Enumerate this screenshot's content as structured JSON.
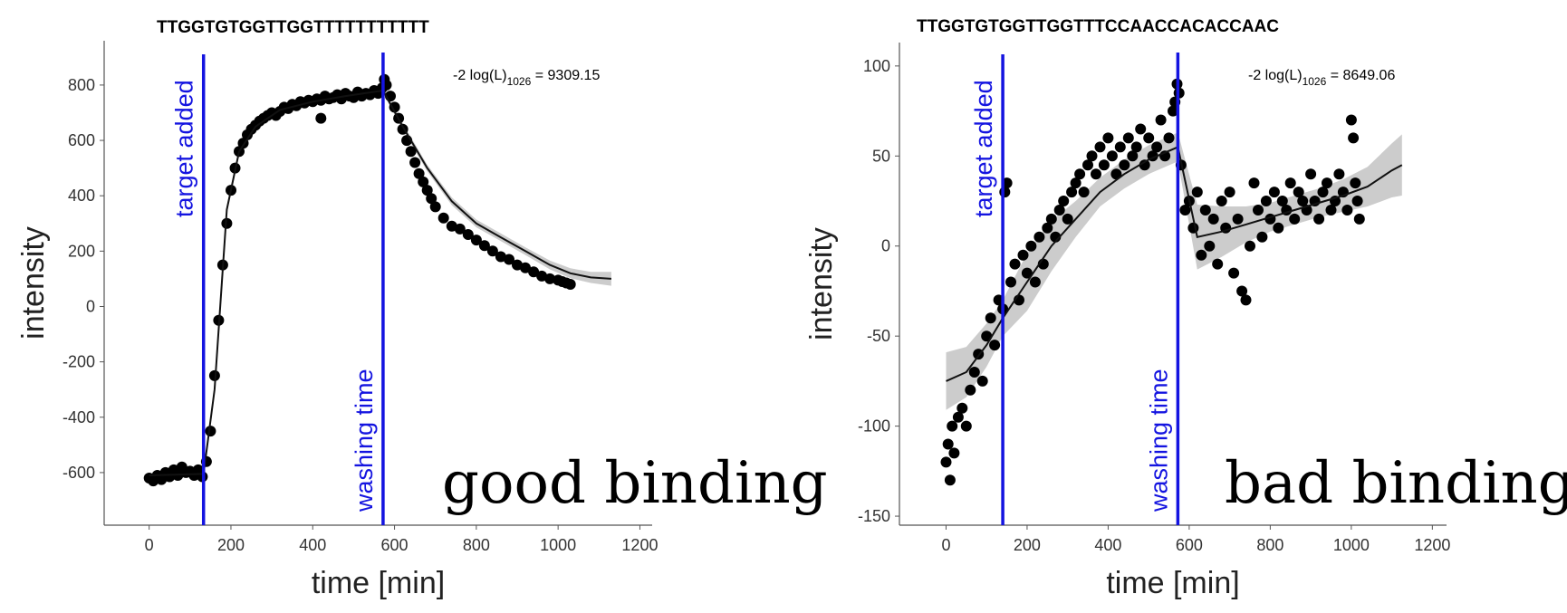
{
  "chart_data": [
    {
      "type": "scatter",
      "title": "TTGGTGTGGTTGGTTTTTTTTTTT",
      "xlabel": "time [min]",
      "ylabel": "intensity",
      "xlim": [
        -110,
        1230
      ],
      "ylim": [
        -790,
        960
      ],
      "xticks": [
        0,
        200,
        400,
        600,
        800,
        1000,
        1200
      ],
      "yticks": [
        -600,
        -400,
        -200,
        0,
        200,
        400,
        600,
        800
      ],
      "xtick_labels": [
        "0",
        "200",
        "400",
        "600",
        "800",
        "1000",
        "1200"
      ],
      "ytick_labels": [
        "-600",
        "-400",
        "-200",
        "0",
        "200",
        "400",
        "600",
        "800"
      ],
      "grid": false,
      "annotation": {
        "prefix": "-2 log(L)",
        "subscript": "1026",
        "suffix": " = 9309.15"
      },
      "caption": "good binding",
      "vlines": [
        {
          "x": 133,
          "label": "target added"
        },
        {
          "x": 572,
          "label": "washing time"
        }
      ],
      "fit": {
        "x": [
          0,
          133,
          160,
          190,
          220,
          260,
          320,
          400,
          480,
          572,
          620,
          680,
          740,
          800,
          860,
          920,
          980,
          1030,
          1080,
          1130
        ],
        "y": [
          -610,
          -605,
          -300,
          350,
          560,
          650,
          710,
          740,
          760,
          780,
          650,
          500,
          380,
          300,
          250,
          200,
          150,
          120,
          105,
          100
        ],
        "band": [
          5,
          5,
          15,
          15,
          10,
          8,
          8,
          8,
          8,
          10,
          12,
          12,
          14,
          14,
          14,
          14,
          16,
          18,
          20,
          25
        ]
      },
      "points": {
        "x": [
          0,
          10,
          20,
          30,
          40,
          50,
          60,
          70,
          80,
          90,
          100,
          110,
          120,
          130,
          140,
          150,
          160,
          170,
          180,
          190,
          200,
          210,
          220,
          230,
          240,
          250,
          260,
          270,
          280,
          290,
          300,
          310,
          320,
          330,
          340,
          350,
          360,
          370,
          380,
          390,
          400,
          410,
          420,
          430,
          440,
          450,
          460,
          470,
          480,
          490,
          500,
          510,
          520,
          530,
          540,
          550,
          560,
          570,
          575,
          580,
          590,
          600,
          610,
          620,
          630,
          640,
          650,
          660,
          670,
          680,
          690,
          700,
          720,
          740,
          760,
          780,
          800,
          820,
          840,
          860,
          880,
          900,
          920,
          940,
          960,
          980,
          1000,
          1010,
          1020,
          1030,
          420
        ],
        "y": [
          -620,
          -630,
          -610,
          -625,
          -600,
          -615,
          -590,
          -610,
          -580,
          -600,
          -595,
          -610,
          -590,
          -615,
          -560,
          -450,
          -250,
          -50,
          150,
          300,
          420,
          500,
          560,
          590,
          620,
          640,
          655,
          670,
          680,
          690,
          700,
          690,
          705,
          720,
          715,
          730,
          725,
          740,
          735,
          745,
          740,
          750,
          745,
          760,
          750,
          755,
          765,
          750,
          770,
          760,
          755,
          775,
          760,
          770,
          765,
          780,
          770,
          790,
          820,
          800,
          760,
          720,
          680,
          640,
          600,
          560,
          520,
          480,
          450,
          420,
          390,
          360,
          320,
          290,
          280,
          260,
          240,
          220,
          200,
          180,
          170,
          150,
          140,
          125,
          110,
          100,
          95,
          90,
          85,
          80,
          680
        ]
      }
    },
    {
      "type": "scatter",
      "title": "TTGGTGTGGTTGGTTTCCAACCACACCAAC",
      "xlabel": "time [min]",
      "ylabel": "intensity",
      "xlim": [
        -115,
        1235
      ],
      "ylim": [
        -155,
        113
      ],
      "xticks": [
        0,
        200,
        400,
        600,
        800,
        1000,
        1200
      ],
      "yticks": [
        -150,
        -100,
        -50,
        0,
        50,
        100
      ],
      "xtick_labels": [
        "0",
        "200",
        "400",
        "600",
        "800",
        "1000",
        "1200"
      ],
      "ytick_labels": [
        "-150",
        "-100",
        "-50",
        "0",
        "50",
        "100"
      ],
      "grid": false,
      "annotation": {
        "prefix": "-2 log(L)",
        "subscript": "1026",
        "suffix": " = 8649.06"
      },
      "caption": "bad binding",
      "vlines": [
        {
          "x": 140,
          "label": "target added"
        },
        {
          "x": 572,
          "label": "washing time"
        }
      ],
      "fit": {
        "x": [
          0,
          50,
          100,
          140,
          200,
          260,
          320,
          380,
          440,
          500,
          572,
          620,
          680,
          740,
          800,
          860,
          920,
          980,
          1040,
          1100,
          1125
        ],
        "y": [
          -75,
          -70,
          -55,
          -40,
          -20,
          0,
          15,
          30,
          40,
          48,
          55,
          5,
          8,
          12,
          16,
          20,
          24,
          28,
          33,
          42,
          45
        ],
        "band": [
          16,
          14,
          12,
          10,
          16,
          14,
          10,
          8,
          8,
          8,
          8,
          18,
          14,
          10,
          8,
          8,
          8,
          9,
          11,
          15,
          17
        ]
      },
      "points": {
        "x": [
          0,
          5,
          10,
          15,
          20,
          30,
          40,
          50,
          60,
          70,
          80,
          90,
          100,
          110,
          120,
          130,
          140,
          145,
          150,
          160,
          170,
          180,
          190,
          200,
          210,
          220,
          230,
          240,
          250,
          260,
          270,
          280,
          290,
          300,
          310,
          320,
          330,
          340,
          350,
          360,
          370,
          380,
          390,
          400,
          410,
          420,
          430,
          440,
          450,
          460,
          470,
          480,
          490,
          500,
          510,
          520,
          530,
          540,
          550,
          560,
          565,
          570,
          575,
          580,
          590,
          600,
          610,
          620,
          630,
          640,
          650,
          660,
          670,
          680,
          690,
          700,
          710,
          720,
          730,
          740,
          750,
          760,
          770,
          780,
          790,
          800,
          810,
          820,
          830,
          840,
          850,
          860,
          870,
          880,
          890,
          900,
          910,
          920,
          930,
          940,
          950,
          960,
          970,
          980,
          990,
          1000,
          1005,
          1010,
          1015,
          1020
        ],
        "y": [
          -120,
          -110,
          -130,
          -100,
          -115,
          -95,
          -90,
          -100,
          -80,
          -70,
          -60,
          -75,
          -50,
          -40,
          -55,
          -30,
          -35,
          30,
          35,
          -20,
          -10,
          -30,
          -5,
          -15,
          0,
          -20,
          5,
          -10,
          10,
          15,
          5,
          20,
          25,
          15,
          30,
          35,
          40,
          30,
          45,
          50,
          40,
          55,
          45,
          60,
          50,
          40,
          55,
          45,
          60,
          50,
          55,
          65,
          45,
          60,
          50,
          55,
          70,
          50,
          60,
          75,
          80,
          90,
          85,
          45,
          20,
          25,
          10,
          30,
          -5,
          20,
          0,
          15,
          -10,
          25,
          10,
          30,
          -15,
          15,
          -25,
          -30,
          0,
          35,
          20,
          5,
          25,
          15,
          30,
          10,
          25,
          20,
          35,
          15,
          30,
          25,
          20,
          40,
          25,
          15,
          30,
          35,
          20,
          25,
          40,
          30,
          20,
          70,
          60,
          35,
          25,
          15
        ]
      }
    }
  ]
}
